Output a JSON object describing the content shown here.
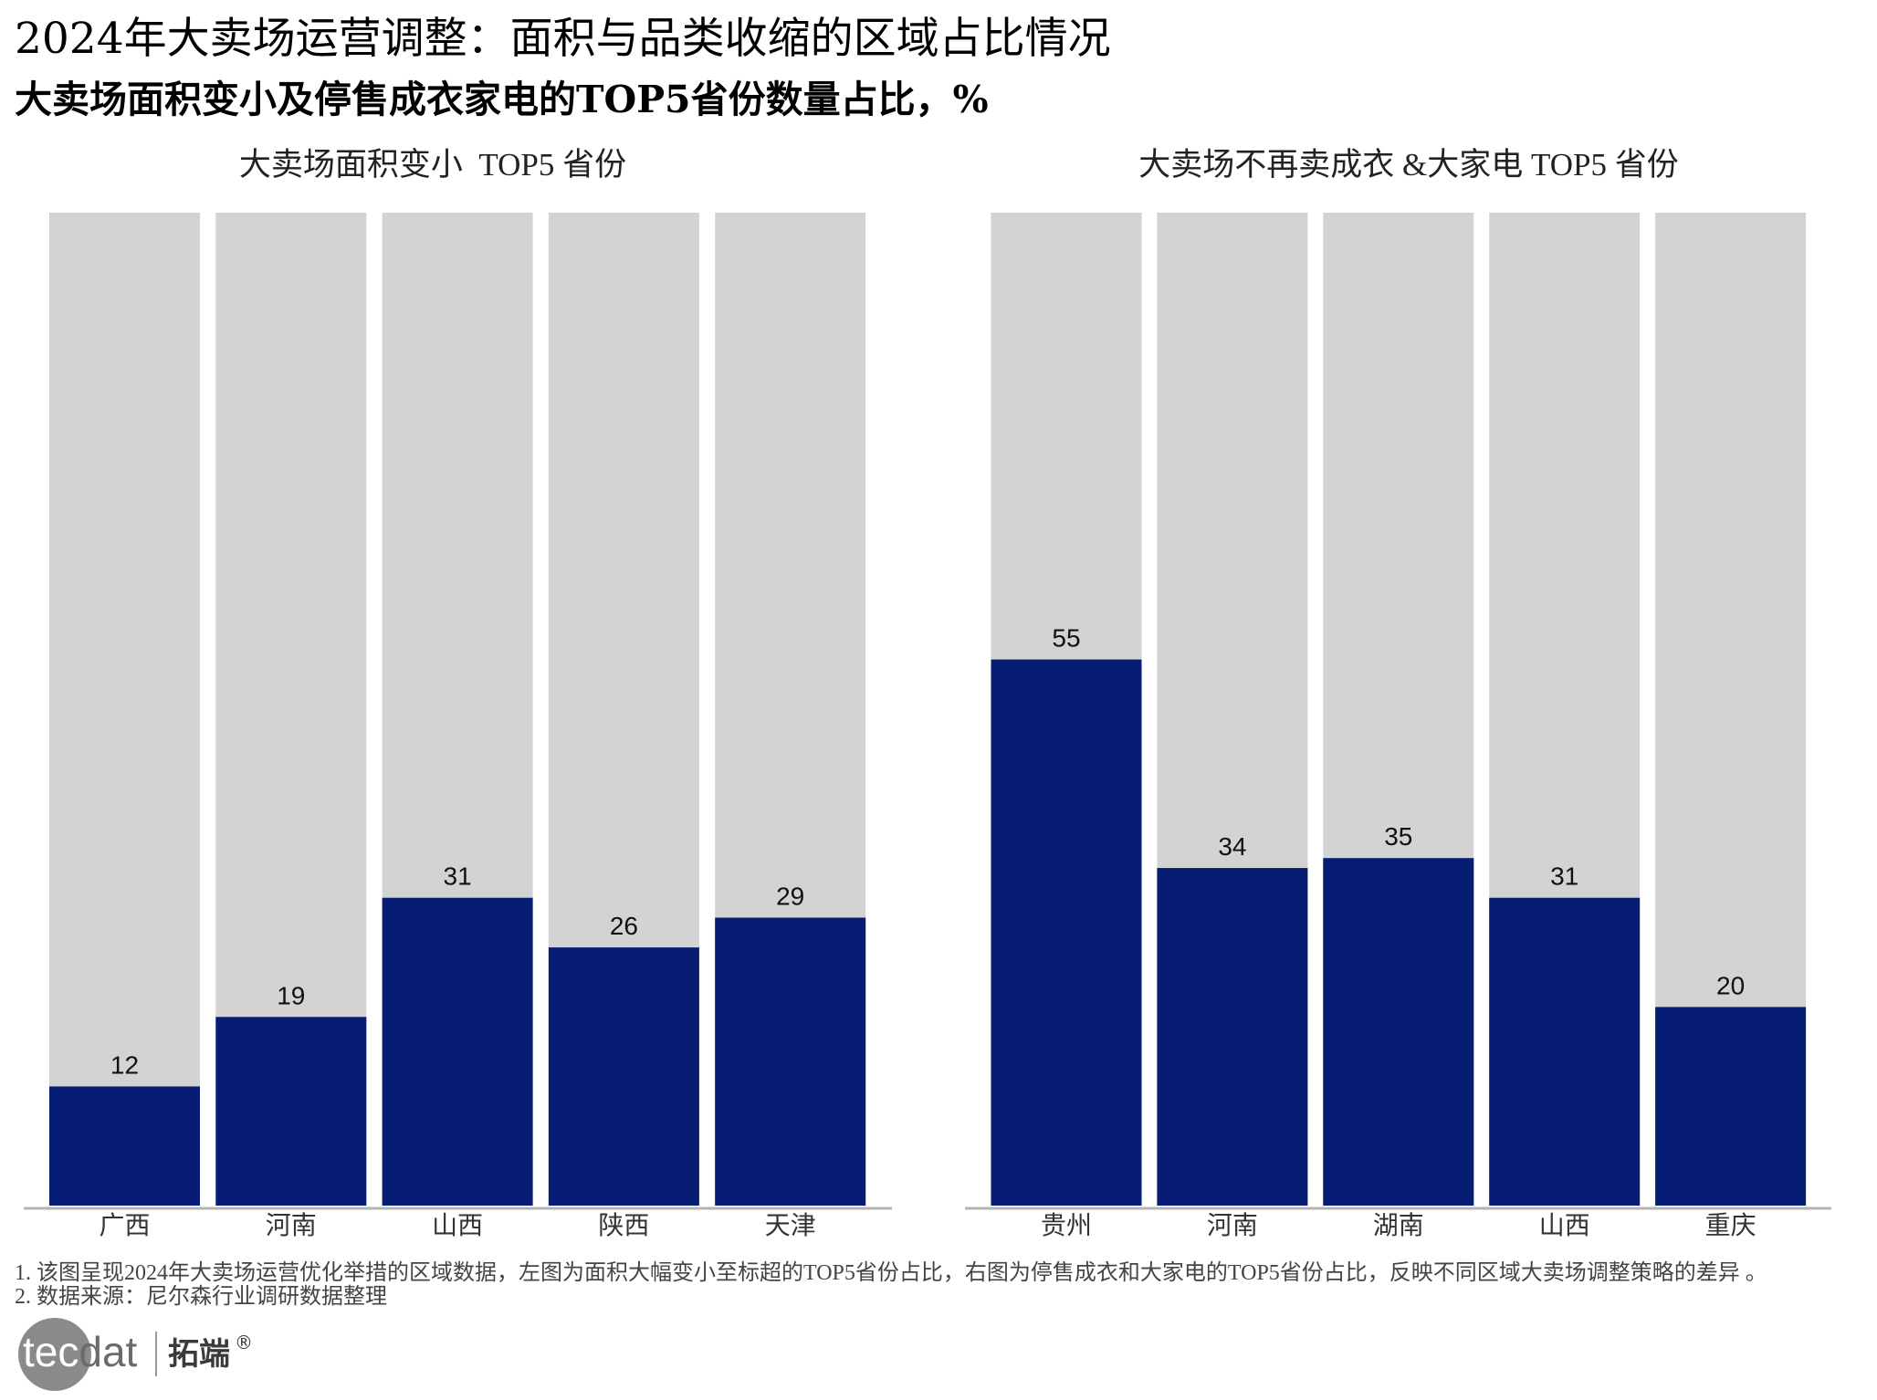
{
  "title": "2024年大卖场运营调整：面积与品类收缩的区域占比情况",
  "subtitle": "大卖场面积变小及停售成衣家电的TOP5省份数量占比，%",
  "chart_data": [
    {
      "type": "bar",
      "title": "大卖场面积变小  TOP5 省份",
      "categories": [
        "广西",
        "河南",
        "山西",
        "陕西",
        "天津"
      ],
      "values": [
        12,
        19,
        31,
        26,
        29
      ],
      "ylim": [
        0,
        100
      ]
    },
    {
      "type": "bar",
      "title": "大卖场不再卖成衣 &大家电 TOP5 省份",
      "categories": [
        "贵州",
        "河南",
        "湖南",
        "山西",
        "重庆"
      ],
      "values": [
        55,
        34,
        35,
        31,
        20
      ],
      "ylim": [
        0,
        100
      ]
    }
  ],
  "colors": {
    "bar": "#071d74",
    "bar_background": "#d3d3d3",
    "axis": "#b3b3b3",
    "value_label": "#111111",
    "category_label": "#333333"
  },
  "footnotes": {
    "line1": "1. 该图呈现2024年大卖场运营优化举措的区域数据，左图为面积大幅变小至标超的TOP5省份占比，右图为停售成衣和大家电的TOP5省份占比，反映不同区域大卖场调整策略的差异 。",
    "line2": "2. 数据来源：尼尔森行业调研数据整理"
  },
  "logo": {
    "mark_a": "tec",
    "mark_b": "dat",
    "name": "拓端",
    "reg": "®"
  }
}
